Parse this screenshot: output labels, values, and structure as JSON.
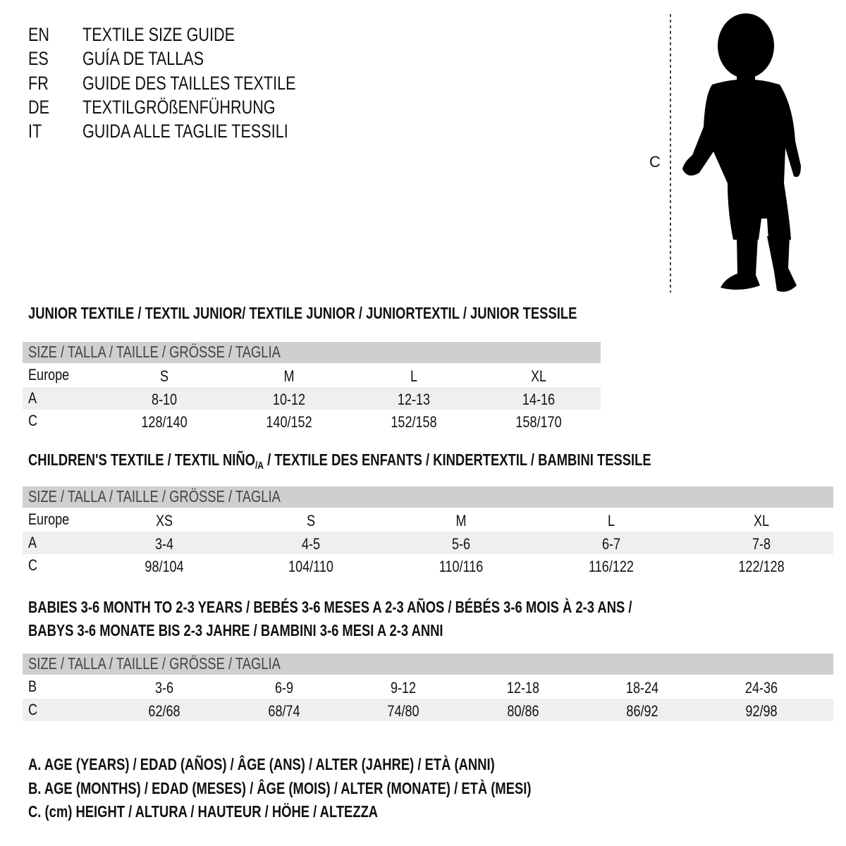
{
  "languages": [
    {
      "code": "EN",
      "title": "TEXTILE SIZE GUIDE"
    },
    {
      "code": "ES",
      "title": "GUÍA DE TALLAS"
    },
    {
      "code": "FR",
      "title": "GUIDE DES TAILLES TEXTILE"
    },
    {
      "code": "DE",
      "title": "TEXTILGRÖßENFÜHRUNG"
    },
    {
      "code": "IT",
      "title": "GUIDA ALLE TAGLIE TESSILI"
    }
  ],
  "figure": {
    "height_label": "C",
    "icon": "child-silhouette-icon"
  },
  "header_label": "SIZE / TALLA / TAILLE / GRÖSSE / TAGLIA",
  "junior": {
    "title": "JUNIOR TEXTILE / TEXTIL JUNIOR/ TEXTILE JUNIOR / JUNIORTEXTIL / JUNIOR TESSILE",
    "rows": [
      {
        "label": "Europe",
        "values": [
          "S",
          "M",
          "L",
          "XL"
        ]
      },
      {
        "label": "A",
        "values": [
          "8-10",
          "10-12",
          "12-13",
          "14-16"
        ]
      },
      {
        "label": "C",
        "values": [
          "128/140",
          "140/152",
          "152/158",
          "158/170"
        ]
      }
    ]
  },
  "children": {
    "title_pre": "CHILDREN'S TEXTILE / TEXTIL NIÑO",
    "title_sub": "/A",
    "title_post": " / TEXTILE DES ENFANTS / KINDERTEXTIL / BAMBINI TESSILE",
    "rows": [
      {
        "label": "Europe",
        "values": [
          "XS",
          "S",
          "M",
          "L",
          "XL"
        ]
      },
      {
        "label": "A",
        "values": [
          "3-4",
          "4-5",
          "5-6",
          "6-7",
          "7-8"
        ]
      },
      {
        "label": "C",
        "values": [
          "98/104",
          "104/110",
          "110/116",
          "116/122",
          "122/128"
        ]
      }
    ]
  },
  "babies": {
    "title_line1": "BABIES 3-6 MONTH TO 2-3 YEARS / BEBÉS 3-6 MESES A 2-3 AÑOS / BÉBÉS 3-6 MOIS À 2-3 ANS /",
    "title_line2": "BABYS 3-6 MONATE BIS 2-3 JAHRE / BAMBINI 3-6 MESI A 2-3 ANNI",
    "rows": [
      {
        "label": "B",
        "values": [
          "3-6",
          "6-9",
          "9-12",
          "12-18",
          "18-24",
          "24-36"
        ]
      },
      {
        "label": "C",
        "values": [
          "62/68",
          "68/74",
          "74/80",
          "80/86",
          "86/92",
          "92/98"
        ]
      }
    ]
  },
  "legend": [
    "A. AGE (YEARS) / EDAD (AÑOS) / ÂGE (ANS) / ALTER (JAHRE) / ETÀ (ANNI)",
    "B. AGE (MONTHS) / EDAD (MESES) / ÂGE (MOIS) / ALTER (MONATE) / ETÀ (MESI)",
    "C. (cm) HEIGHT / ALTURA / HAUTEUR / HÖHE / ALTEZZA"
  ]
}
